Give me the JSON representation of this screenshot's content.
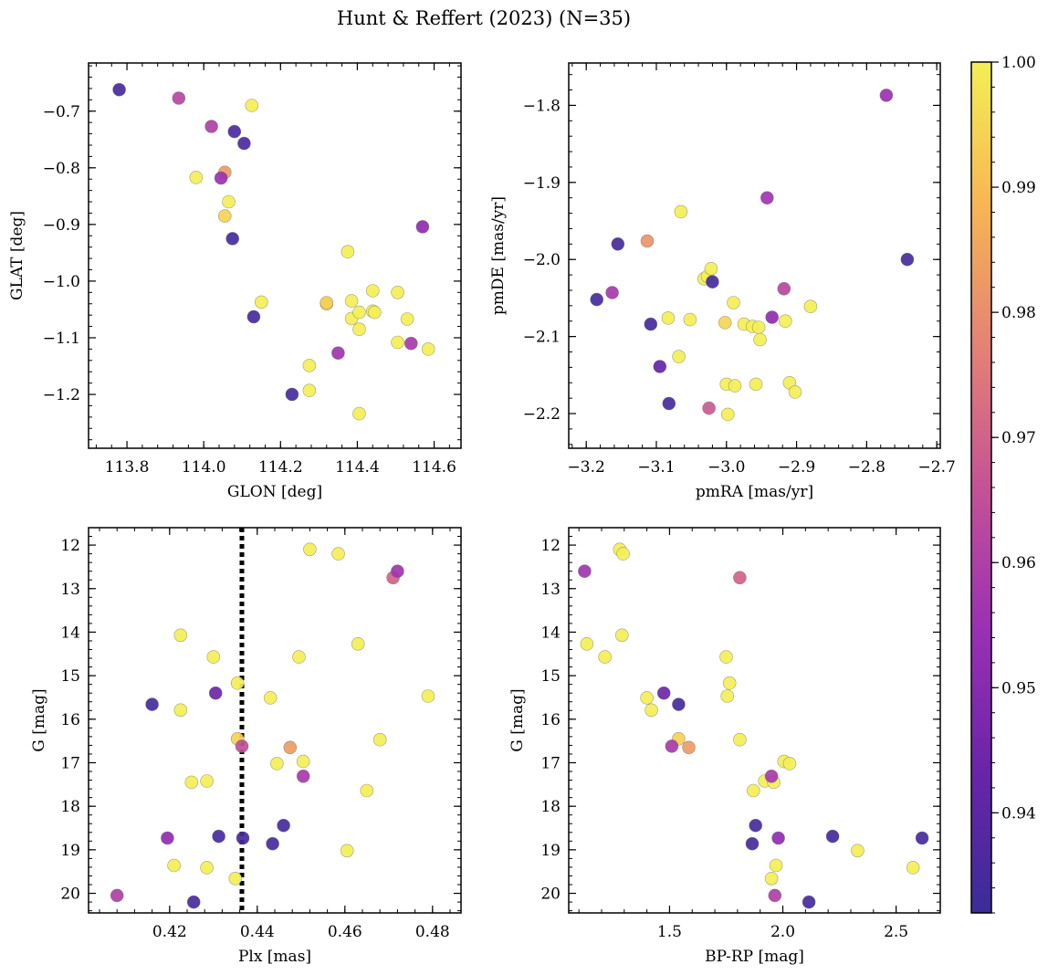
{
  "figure": {
    "title": "Hunt & Reffert (2023) (N=35)"
  },
  "colorbar": {
    "min": 0.932,
    "max": 1.0,
    "ticks": [
      "1.00",
      "0.99",
      "0.98",
      "0.97",
      "0.96",
      "0.95",
      "0.94"
    ],
    "tick_values": [
      1.0,
      0.99,
      0.98,
      0.97,
      0.96,
      0.95,
      0.94
    ],
    "colormap": "plasma (truncated)",
    "colors": [
      "#3b2c9a",
      "#6a24a8",
      "#9a30b4",
      "#c55296",
      "#e48274",
      "#f7b653",
      "#f3ef55"
    ]
  },
  "chart_data": [
    {
      "type": "scatter",
      "id": "sky",
      "xlabel": "GLON [deg]",
      "ylabel": "GLAT [deg]",
      "xlim": [
        113.7,
        114.67
      ],
      "ylim": [
        -1.295,
        -0.615
      ],
      "invert_y": false,
      "xticks": [
        113.8,
        114.0,
        114.2,
        114.4,
        114.6
      ],
      "xtick_labels": [
        "113.8",
        "114.0",
        "114.2",
        "114.4",
        "114.6"
      ],
      "yticks": [
        -0.7,
        -0.8,
        -0.9,
        -1.0,
        -1.1,
        -1.2
      ],
      "ytick_labels": [
        "−0.7",
        "−0.8",
        "−0.9",
        "−1.0",
        "−1.1",
        "−1.2"
      ],
      "x": [
        113.78,
        113.935,
        114.02,
        114.08,
        114.105,
        114.125,
        113.98,
        114.055,
        114.045,
        114.065,
        114.055,
        114.075,
        114.15,
        114.13,
        114.32,
        114.32,
        114.375,
        114.385,
        114.385,
        114.405,
        114.405,
        114.44,
        114.44,
        114.505,
        114.53,
        114.57,
        114.505,
        114.54,
        114.585,
        114.35,
        114.275,
        114.275,
        114.23,
        114.405,
        114.445
      ],
      "y": [
        -0.662,
        -0.677,
        -0.727,
        -0.736,
        -0.757,
        -0.69,
        -0.817,
        -0.808,
        -0.818,
        -0.86,
        -0.885,
        -0.925,
        -1.037,
        -1.063,
        -1.038,
        -1.04,
        -0.948,
        -1.035,
        -1.066,
        -1.055,
        -1.085,
        -1.017,
        -1.053,
        -1.02,
        -1.067,
        -0.904,
        -1.108,
        -1.11,
        -1.12,
        -1.127,
        -1.149,
        -1.193,
        -1.2,
        -1.234,
        -1.055
      ],
      "prob": [
        0.935,
        0.962,
        0.96,
        0.936,
        0.936,
        1.0,
        1.0,
        0.983,
        0.955,
        1.0,
        0.994,
        0.935,
        1.0,
        0.935,
        0.993,
        1.0,
        1.0,
        1.0,
        1.0,
        1.0,
        1.0,
        1.0,
        1.0,
        1.0,
        1.0,
        0.952,
        1.0,
        0.958,
        1.0,
        0.956,
        1.0,
        1.0,
        0.935,
        1.0,
        1.0
      ]
    },
    {
      "type": "scatter",
      "id": "pm",
      "xlabel": "pmRA [mas/yr]",
      "ylabel": "pmDE [mas/yr]",
      "xlim": [
        -3.225,
        -2.695
      ],
      "ylim": [
        -2.245,
        -1.745
      ],
      "invert_y": false,
      "xticks": [
        -3.2,
        -3.1,
        -3.0,
        -2.9,
        -2.8,
        -2.7
      ],
      "xtick_labels": [
        "−3.2",
        "−3.1",
        "−3.0",
        "−2.9",
        "−2.8",
        "−2.7"
      ],
      "yticks": [
        -1.8,
        -1.9,
        -2.0,
        -2.1,
        -2.2
      ],
      "ytick_labels": [
        "−1.8",
        "−1.9",
        "−2.0",
        "−2.1",
        "−2.2"
      ],
      "x": [
        -2.772,
        -2.942,
        -3.065,
        -3.155,
        -3.113,
        -2.742,
        -3.185,
        -3.163,
        -3.108,
        -3.083,
        -3.052,
        -3.032,
        -3.027,
        -3.022,
        -3.02,
        -2.99,
        -3.002,
        -2.975,
        -2.963,
        -2.954,
        -2.952,
        -2.935,
        -2.918,
        -2.916,
        -2.88,
        -3.095,
        -3.068,
        -3.0,
        -2.988,
        -2.998,
        -2.958,
        -2.91,
        -2.902,
        -3.082,
        -3.025
      ],
      "y": [
        -1.787,
        -1.92,
        -1.938,
        -1.98,
        -1.976,
        -2.0,
        -2.052,
        -2.043,
        -2.084,
        -2.076,
        -2.078,
        -2.025,
        -2.022,
        -2.012,
        -2.029,
        -2.056,
        -2.082,
        -2.084,
        -2.087,
        -2.088,
        -2.104,
        -2.075,
        -2.038,
        -2.08,
        -2.061,
        -2.139,
        -2.126,
        -2.162,
        -2.164,
        -2.201,
        -2.162,
        -2.16,
        -2.172,
        -2.187,
        -2.193
      ],
      "prob": [
        0.955,
        0.956,
        1.0,
        0.935,
        0.981,
        0.935,
        0.935,
        0.958,
        0.935,
        1.0,
        1.0,
        1.0,
        1.0,
        1.0,
        0.935,
        1.0,
        0.995,
        1.0,
        1.0,
        1.0,
        1.0,
        0.952,
        0.962,
        1.0,
        1.0,
        0.942,
        1.0,
        1.0,
        1.0,
        1.0,
        1.0,
        1.0,
        1.0,
        0.935,
        0.968
      ]
    },
    {
      "type": "scatter",
      "id": "plx",
      "xlabel": "Plx [mas]",
      "ylabel": "G [mag]",
      "xlim": [
        0.4015,
        0.4865
      ],
      "ylim": [
        20.45,
        11.6
      ],
      "invert_y": true,
      "xticks": [
        0.42,
        0.44,
        0.46,
        0.48
      ],
      "xtick_labels": [
        "0.42",
        "0.44",
        "0.46",
        "0.48"
      ],
      "yticks": [
        12,
        13,
        14,
        15,
        16,
        17,
        18,
        19,
        20
      ],
      "ytick_labels": [
        "12",
        "13",
        "14",
        "15",
        "16",
        "17",
        "18",
        "19",
        "20"
      ],
      "vline": {
        "x": 0.4365,
        "style": "dotted",
        "color": "#000000"
      },
      "x": [
        0.452,
        0.4585,
        0.472,
        0.471,
        0.4225,
        0.43,
        0.463,
        0.4495,
        0.4355,
        0.4305,
        0.416,
        0.4225,
        0.443,
        0.479,
        0.4355,
        0.4365,
        0.4475,
        0.4445,
        0.4505,
        0.468,
        0.4505,
        0.425,
        0.4285,
        0.465,
        0.446,
        0.4195,
        0.4312,
        0.4367,
        0.4435,
        0.421,
        0.4285,
        0.4605,
        0.435,
        0.408,
        0.4255
      ],
      "y": [
        12.1,
        12.2,
        12.6,
        12.75,
        14.07,
        14.57,
        14.27,
        14.57,
        15.17,
        15.4,
        15.66,
        15.79,
        15.51,
        15.47,
        16.45,
        16.62,
        16.65,
        17.02,
        16.97,
        16.47,
        17.31,
        17.45,
        17.42,
        17.64,
        18.44,
        18.73,
        18.69,
        18.73,
        18.86,
        19.36,
        19.41,
        19.02,
        19.66,
        20.05,
        20.2
      ],
      "prob": [
        1.0,
        1.0,
        0.956,
        0.97,
        1.0,
        1.0,
        1.0,
        1.0,
        1.0,
        0.944,
        0.935,
        1.0,
        1.0,
        1.0,
        0.994,
        0.965,
        0.983,
        1.0,
        1.0,
        1.0,
        0.958,
        1.0,
        1.0,
        1.0,
        0.935,
        0.952,
        0.935,
        0.935,
        0.935,
        1.0,
        1.0,
        1.0,
        1.0,
        0.96,
        0.935
      ]
    },
    {
      "type": "scatter",
      "id": "cmd",
      "xlabel": "BP-RP [mag]",
      "ylabel": "G [mag]",
      "xlim": [
        1.055,
        2.695
      ],
      "ylim": [
        20.45,
        11.6
      ],
      "invert_y": true,
      "xticks": [
        1.5,
        2.0,
        2.5
      ],
      "xtick_labels": [
        "1.5",
        "2.0",
        "2.5"
      ],
      "yticks": [
        12,
        13,
        14,
        15,
        16,
        17,
        18,
        19,
        20
      ],
      "ytick_labels": [
        "12",
        "13",
        "14",
        "15",
        "16",
        "17",
        "18",
        "19",
        "20"
      ],
      "x": [
        1.28,
        1.295,
        1.125,
        1.81,
        1.135,
        1.29,
        1.215,
        1.75,
        1.42,
        1.4,
        1.475,
        1.54,
        1.765,
        1.755,
        1.54,
        1.51,
        1.585,
        1.81,
        2.005,
        2.03,
        1.95,
        1.87,
        1.92,
        1.96,
        1.88,
        1.98,
        1.865,
        2.22,
        2.615,
        2.33,
        1.97,
        1.95,
        2.575,
        1.965,
        2.115
      ],
      "y": [
        12.1,
        12.2,
        12.6,
        12.75,
        14.27,
        14.07,
        14.57,
        14.57,
        15.79,
        15.51,
        15.4,
        15.66,
        15.17,
        15.47,
        16.45,
        16.62,
        16.65,
        16.47,
        16.97,
        17.02,
        17.31,
        17.64,
        17.42,
        17.45,
        18.44,
        18.73,
        18.86,
        18.69,
        18.73,
        19.02,
        19.36,
        19.66,
        19.41,
        20.05,
        20.2
      ],
      "prob": [
        1.0,
        1.0,
        0.956,
        0.97,
        1.0,
        1.0,
        1.0,
        1.0,
        1.0,
        1.0,
        0.944,
        0.935,
        1.0,
        1.0,
        0.994,
        0.958,
        0.983,
        1.0,
        1.0,
        1.0,
        0.958,
        1.0,
        1.0,
        1.0,
        0.935,
        0.952,
        0.935,
        0.935,
        0.935,
        1.0,
        1.0,
        1.0,
        1.0,
        0.96,
        0.935
      ]
    }
  ]
}
